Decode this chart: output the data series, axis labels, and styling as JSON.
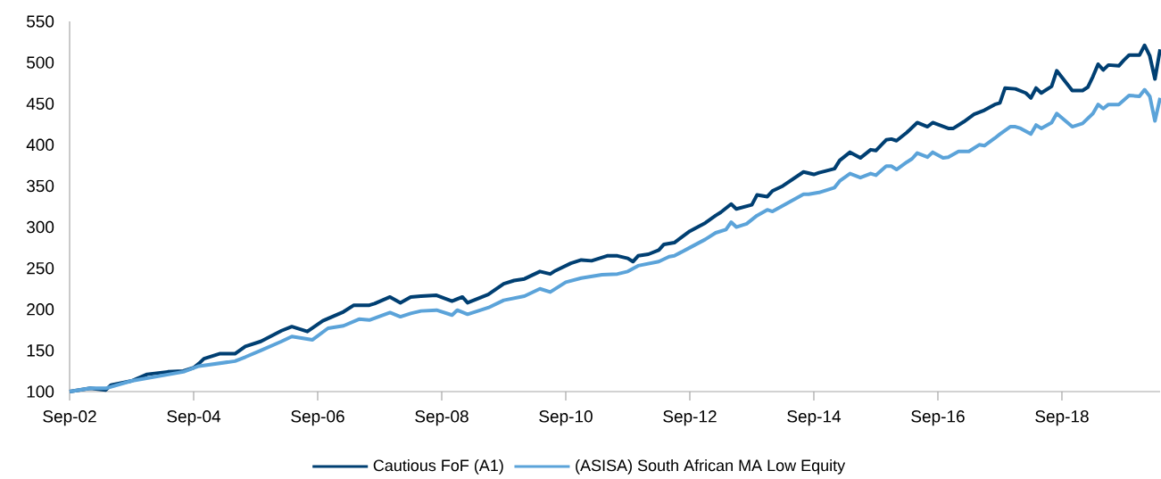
{
  "chart_data": {
    "type": "line",
    "legend": "bottom",
    "xlim": [
      "2002-09",
      "2020-04"
    ],
    "ylim": [
      100,
      550
    ],
    "xticks": [
      {
        "value": "2002-09",
        "label": "Sep-02"
      },
      {
        "value": "2004-09",
        "label": "Sep-04"
      },
      {
        "value": "2006-09",
        "label": "Sep-06"
      },
      {
        "value": "2008-09",
        "label": "Sep-08"
      },
      {
        "value": "2010-09",
        "label": "Sep-10"
      },
      {
        "value": "2012-09",
        "label": "Sep-12"
      },
      {
        "value": "2014-09",
        "label": "Sep-14"
      },
      {
        "value": "2016-09",
        "label": "Sep-16"
      },
      {
        "value": "2018-09",
        "label": "Sep-18"
      }
    ],
    "yticks": [
      100,
      150,
      200,
      250,
      300,
      350,
      400,
      450,
      500,
      550
    ],
    "series": [
      {
        "name": "Cautious FoF (A1)",
        "color": "#003f72",
        "x": [
          "2002-09",
          "2003-01",
          "2003-04",
          "2003-05",
          "2003-09",
          "2003-12",
          "2004-04",
          "2004-07",
          "2004-09",
          "2004-10",
          "2004-11",
          "2005-02",
          "2005-05",
          "2005-07",
          "2005-10",
          "2006-02",
          "2006-04",
          "2006-07",
          "2006-10",
          "2007-02",
          "2007-04",
          "2007-07",
          "2007-08",
          "2007-11",
          "2008-01",
          "2008-03",
          "2008-05",
          "2008-08",
          "2008-11",
          "2009-01",
          "2009-02",
          "2009-04",
          "2009-06",
          "2009-09",
          "2009-11",
          "2010-01",
          "2010-02",
          "2010-04",
          "2010-06",
          "2010-07",
          "2010-10",
          "2010-12",
          "2011-02",
          "2011-05",
          "2011-07",
          "2011-09",
          "2011-10",
          "2011-11",
          "2012-01",
          "2012-03",
          "2012-04",
          "2012-06",
          "2012-09",
          "2012-12",
          "2013-02",
          "2013-03",
          "2013-05",
          "2013-06",
          "2013-09",
          "2013-10",
          "2013-12",
          "2014-01",
          "2014-03",
          "2014-07",
          "2014-09",
          "2014-10",
          "2015-01",
          "2015-02",
          "2015-04",
          "2015-06",
          "2015-08",
          "2015-09",
          "2015-11",
          "2015-12",
          "2016-01",
          "2016-03",
          "2016-05",
          "2016-07",
          "2016-08",
          "2016-11",
          "2016-12",
          "2017-02",
          "2017-04",
          "2017-06",
          "2017-08",
          "2017-09",
          "2017-10",
          "2017-12",
          "2018-02",
          "2018-03",
          "2018-04",
          "2018-05",
          "2018-07",
          "2018-08",
          "2018-11",
          "2019-01",
          "2019-02",
          "2019-03",
          "2019-04",
          "2019-05",
          "2019-06",
          "2019-08",
          "2019-09",
          "2019-10",
          "2019-12",
          "2020-01",
          "2020-02",
          "2020-03",
          "2020-04"
        ],
        "values": [
          100,
          104,
          102,
          108,
          113,
          121,
          124,
          125,
          129,
          134,
          140,
          146,
          146,
          155,
          161,
          174,
          179,
          173,
          186,
          197,
          205,
          205,
          207,
          215,
          208,
          215,
          216,
          217,
          210,
          215,
          208,
          213,
          218,
          231,
          235,
          237,
          240,
          246,
          243,
          247,
          256,
          260,
          259,
          265,
          265,
          262,
          258,
          265,
          267,
          272,
          279,
          281,
          295,
          305,
          314,
          318,
          328,
          322,
          327,
          339,
          337,
          344,
          350,
          367,
          364,
          366,
          371,
          381,
          391,
          384,
          394,
          393,
          406,
          407,
          405,
          415,
          427,
          422,
          427,
          420,
          420,
          428,
          437,
          442,
          449,
          451,
          469,
          468,
          463,
          457,
          469,
          463,
          471,
          490,
          466,
          466,
          470,
          483,
          498,
          491,
          497,
          496,
          503,
          509,
          509,
          521,
          508,
          480,
          516
        ]
      },
      {
        "name": "(ASISA) South African MA Low Equity",
        "color": "#5ba3d9",
        "x": [
          "2002-09",
          "2003-01",
          "2003-04",
          "2003-09",
          "2004-07",
          "2004-10",
          "2005-05",
          "2005-07",
          "2005-10",
          "2006-02",
          "2006-04",
          "2006-08",
          "2006-11",
          "2007-02",
          "2007-05",
          "2007-07",
          "2007-11",
          "2008-01",
          "2008-03",
          "2008-05",
          "2008-08",
          "2008-11",
          "2008-12",
          "2009-02",
          "2009-06",
          "2009-09",
          "2010-01",
          "2010-04",
          "2010-06",
          "2010-09",
          "2010-12",
          "2011-04",
          "2011-07",
          "2011-09",
          "2011-11",
          "2012-03",
          "2012-05",
          "2012-06",
          "2012-09",
          "2012-12",
          "2013-02",
          "2013-04",
          "2013-05",
          "2013-06",
          "2013-08",
          "2013-10",
          "2013-12",
          "2014-01",
          "2014-07",
          "2014-08",
          "2014-10",
          "2015-01",
          "2015-02",
          "2015-04",
          "2015-06",
          "2015-08",
          "2015-09",
          "2015-11",
          "2015-12",
          "2016-01",
          "2016-03",
          "2016-04",
          "2016-05",
          "2016-07",
          "2016-08",
          "2016-10",
          "2016-11",
          "2017-01",
          "2017-03",
          "2017-05",
          "2017-06",
          "2017-08",
          "2017-09",
          "2017-11",
          "2017-12",
          "2018-01",
          "2018-03",
          "2018-04",
          "2018-05",
          "2018-07",
          "2018-08",
          "2018-11",
          "2019-01",
          "2019-03",
          "2019-04",
          "2019-05",
          "2019-06",
          "2019-08",
          "2019-10",
          "2019-12",
          "2020-01",
          "2020-02",
          "2020-03",
          "2020-04"
        ],
        "values": [
          100,
          104,
          104,
          113,
          124,
          131,
          137,
          142,
          150,
          161,
          167,
          163,
          177,
          180,
          188,
          187,
          196,
          191,
          195,
          198,
          199,
          193,
          199,
          194,
          202,
          211,
          216,
          225,
          221,
          233,
          238,
          242,
          243,
          246,
          253,
          258,
          264,
          265,
          275,
          285,
          293,
          297,
          306,
          300,
          304,
          314,
          321,
          319,
          340,
          340,
          342,
          348,
          356,
          365,
          360,
          365,
          363,
          374,
          374,
          370,
          379,
          383,
          390,
          385,
          391,
          384,
          385,
          392,
          392,
          400,
          399,
          408,
          413,
          422,
          422,
          420,
          413,
          424,
          420,
          427,
          438,
          422,
          426,
          438,
          449,
          444,
          449,
          449,
          460,
          459,
          467,
          459,
          429,
          457
        ]
      }
    ]
  }
}
